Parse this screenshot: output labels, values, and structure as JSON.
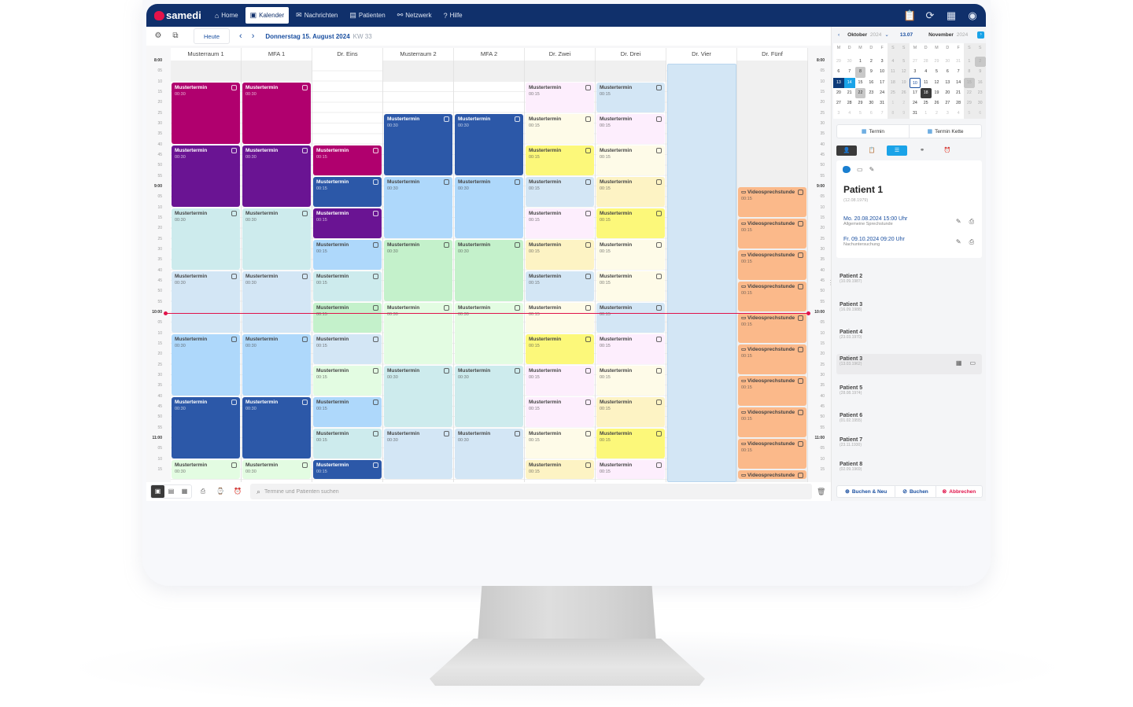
{
  "app": {
    "logo_text": "samedi",
    "nav": [
      {
        "label": "Home",
        "icon": "⌂",
        "icon_name": "home-icon",
        "active": false
      },
      {
        "label": "Kalender",
        "icon": "▣",
        "icon_name": "calendar-icon",
        "active": true
      },
      {
        "label": "Nachrichten",
        "icon": "✉",
        "icon_name": "mail-icon",
        "active": false
      },
      {
        "label": "Patienten",
        "icon": "▤",
        "icon_name": "patients-icon",
        "active": false
      },
      {
        "label": "Netzwerk",
        "icon": "⚯",
        "icon_name": "network-icon",
        "active": false
      },
      {
        "label": "Hilfe",
        "icon": "?",
        "icon_name": "help-icon",
        "active": false
      }
    ],
    "nav_right_icons": [
      {
        "name": "clipboard-edit-icon",
        "glyph": "📋"
      },
      {
        "name": "sync-icon",
        "glyph": "⟳"
      },
      {
        "name": "calendar-add-icon",
        "glyph": "▦"
      },
      {
        "name": "user-account-icon",
        "glyph": "◉"
      }
    ]
  },
  "toolbar": {
    "today_label": "Heute",
    "prev": "‹",
    "next": "›",
    "date": "Donnerstag 15. August 2024",
    "week": "KW 33"
  },
  "calendar": {
    "columns": [
      "Musterraum 1",
      "MFA 1",
      "Dr. Eins",
      "Musterraum 2",
      "MFA 2",
      "Dr. Zwei",
      "Dr. Drei",
      "Dr. Vier",
      "Dr. Fünf"
    ],
    "time_labels_left": [
      "8:00",
      "05",
      "10",
      "15",
      "20",
      "25",
      "30",
      "35",
      "40",
      "45",
      "50",
      "55",
      "9:00",
      "05",
      "10",
      "15",
      "20",
      "25",
      "30",
      "35",
      "40",
      "45",
      "50",
      "55",
      "10:00",
      "05",
      "10",
      "15",
      "20",
      "25",
      "30",
      "35",
      "40",
      "45",
      "50",
      "55",
      "11:00",
      "05",
      "10",
      "15"
    ],
    "time_labels_right": [
      "8:00",
      "05",
      "10",
      "15",
      "20",
      "25",
      "30",
      "35",
      "40",
      "45",
      "50",
      "55",
      "9:00",
      "05",
      "10",
      "15",
      "20",
      "25",
      "30",
      "35",
      "40",
      "45",
      "50",
      "55",
      "10:00",
      "05",
      "10",
      "15",
      "20",
      "25",
      "30",
      "35",
      "40",
      "45",
      "50",
      "55",
      "11:00",
      "05",
      "10",
      "15"
    ],
    "current_time": "10:00",
    "appointments": [
      {
        "col": 0,
        "start": 2,
        "len": 6,
        "title": "Mustertermin",
        "dur": "00:30",
        "bg": "#b0006e",
        "fg": "#ffffff"
      },
      {
        "col": 0,
        "start": 8,
        "len": 6,
        "title": "Mustertermin",
        "dur": "00:30",
        "bg": "#6a1493",
        "fg": "#ffffff"
      },
      {
        "col": 0,
        "start": 14,
        "len": 6,
        "title": "Mustertermin",
        "dur": "00:30",
        "bg": "#cdebed",
        "fg": "#444444"
      },
      {
        "col": 0,
        "start": 20,
        "len": 6,
        "title": "Mustertermin",
        "dur": "00:30",
        "bg": "#d3e6f5",
        "fg": "#444444"
      },
      {
        "col": 0,
        "start": 26,
        "len": 6,
        "title": "Mustertermin",
        "dur": "00:30",
        "bg": "#aed8fb",
        "fg": "#444444"
      },
      {
        "col": 0,
        "start": 32,
        "len": 6,
        "title": "Mustertermin",
        "dur": "00:30",
        "bg": "#2c58a8",
        "fg": "#ffffff"
      },
      {
        "col": 0,
        "start": 38,
        "len": 2,
        "title": "Mustertermin",
        "dur": "00:30",
        "bg": "#e3fce2",
        "fg": "#444444"
      },
      {
        "col": 1,
        "start": 2,
        "len": 6,
        "title": "Mustertermin",
        "dur": "00:30",
        "bg": "#b0006e",
        "fg": "#ffffff"
      },
      {
        "col": 1,
        "start": 8,
        "len": 6,
        "title": "Mustertermin",
        "dur": "00:30",
        "bg": "#6a1493",
        "fg": "#ffffff"
      },
      {
        "col": 1,
        "start": 14,
        "len": 6,
        "title": "Mustertermin",
        "dur": "00:30",
        "bg": "#cdebed",
        "fg": "#444444"
      },
      {
        "col": 1,
        "start": 20,
        "len": 6,
        "title": "Mustertermin",
        "dur": "00:30",
        "bg": "#d3e6f5",
        "fg": "#444444"
      },
      {
        "col": 1,
        "start": 26,
        "len": 6,
        "title": "Mustertermin",
        "dur": "00:30",
        "bg": "#aed8fb",
        "fg": "#444444"
      },
      {
        "col": 1,
        "start": 32,
        "len": 6,
        "title": "Mustertermin",
        "dur": "00:30",
        "bg": "#2c58a8",
        "fg": "#ffffff"
      },
      {
        "col": 1,
        "start": 38,
        "len": 2,
        "title": "Mustertermin",
        "dur": "00:30",
        "bg": "#e3fce2",
        "fg": "#444444"
      },
      {
        "col": 2,
        "start": 8,
        "len": 3,
        "title": "Mustertermin",
        "dur": "00:15",
        "bg": "#b0006e",
        "fg": "#ffffff"
      },
      {
        "col": 2,
        "start": 11,
        "len": 3,
        "title": "Mustertermin",
        "dur": "00:15",
        "bg": "#2c58a8",
        "fg": "#ffffff"
      },
      {
        "col": 2,
        "start": 14,
        "len": 3,
        "title": "Mustertermin",
        "dur": "00:15",
        "bg": "#6a1493",
        "fg": "#ffffff"
      },
      {
        "col": 2,
        "start": 17,
        "len": 3,
        "title": "Mustertermin",
        "dur": "00:15",
        "bg": "#aed8fb",
        "fg": "#444444"
      },
      {
        "col": 2,
        "start": 20,
        "len": 3,
        "title": "Mustertermin",
        "dur": "00:15",
        "bg": "#cdebed",
        "fg": "#444444"
      },
      {
        "col": 2,
        "start": 23,
        "len": 3,
        "title": "Mustertermin",
        "dur": "00:15",
        "bg": "#c4f1cb",
        "fg": "#444444"
      },
      {
        "col": 2,
        "start": 26,
        "len": 3,
        "title": "Mustertermin",
        "dur": "00:15",
        "bg": "#d3e6f5",
        "fg": "#444444"
      },
      {
        "col": 2,
        "start": 29,
        "len": 3,
        "title": "Mustertermin",
        "dur": "00:15",
        "bg": "#e3fce2",
        "fg": "#444444"
      },
      {
        "col": 2,
        "start": 32,
        "len": 3,
        "title": "Mustertermin",
        "dur": "00:15",
        "bg": "#aed8fb",
        "fg": "#444444"
      },
      {
        "col": 2,
        "start": 35,
        "len": 3,
        "title": "Mustertermin",
        "dur": "00:15",
        "bg": "#cdebed",
        "fg": "#444444"
      },
      {
        "col": 2,
        "start": 38,
        "len": 2,
        "title": "Mustertermin",
        "dur": "00:15",
        "bg": "#2c58a8",
        "fg": "#ffffff"
      },
      {
        "col": 3,
        "start": 5,
        "len": 6,
        "title": "Mustertermin",
        "dur": "00:30",
        "bg": "#2c58a8",
        "fg": "#ffffff"
      },
      {
        "col": 3,
        "start": 11,
        "len": 6,
        "title": "Mustertermin",
        "dur": "00:30",
        "bg": "#aed8fb",
        "fg": "#444444"
      },
      {
        "col": 3,
        "start": 17,
        "len": 6,
        "title": "Mustertermin",
        "dur": "00:30",
        "bg": "#c4f1cb",
        "fg": "#444444"
      },
      {
        "col": 3,
        "start": 23,
        "len": 6,
        "title": "Mustertermin",
        "dur": "00:30",
        "bg": "#e3fce2",
        "fg": "#444444"
      },
      {
        "col": 3,
        "start": 29,
        "len": 6,
        "title": "Mustertermin",
        "dur": "00:30",
        "bg": "#cdebed",
        "fg": "#444444"
      },
      {
        "col": 3,
        "start": 35,
        "len": 5,
        "title": "Mustertermin",
        "dur": "00:30",
        "bg": "#d3e6f5",
        "fg": "#444444"
      },
      {
        "col": 4,
        "start": 5,
        "len": 6,
        "title": "Mustertermin",
        "dur": "00:30",
        "bg": "#2c58a8",
        "fg": "#ffffff"
      },
      {
        "col": 4,
        "start": 11,
        "len": 6,
        "title": "Mustertermin",
        "dur": "00:30",
        "bg": "#aed8fb",
        "fg": "#444444"
      },
      {
        "col": 4,
        "start": 17,
        "len": 6,
        "title": "Mustertermin",
        "dur": "00:30",
        "bg": "#c4f1cb",
        "fg": "#444444"
      },
      {
        "col": 4,
        "start": 23,
        "len": 6,
        "title": "Mustertermin",
        "dur": "00:30",
        "bg": "#e3fce2",
        "fg": "#444444"
      },
      {
        "col": 4,
        "start": 29,
        "len": 6,
        "title": "Mustertermin",
        "dur": "00:30",
        "bg": "#cdebed",
        "fg": "#444444"
      },
      {
        "col": 4,
        "start": 35,
        "len": 5,
        "title": "Mustertermin",
        "dur": "00:30",
        "bg": "#d3e6f5",
        "fg": "#444444"
      },
      {
        "col": 5,
        "start": 2,
        "len": 3,
        "title": "Mustertermin",
        "dur": "00:15",
        "bg": "#fdeefd",
        "fg": "#444444"
      },
      {
        "col": 5,
        "start": 5,
        "len": 3,
        "title": "Mustertermin",
        "dur": "00:15",
        "bg": "#fefbe8",
        "fg": "#444444"
      },
      {
        "col": 5,
        "start": 8,
        "len": 3,
        "title": "Mustertermin",
        "dur": "00:15",
        "bg": "#fcf87a",
        "fg": "#444444"
      },
      {
        "col": 5,
        "start": 11,
        "len": 3,
        "title": "Mustertermin",
        "dur": "00:15",
        "bg": "#d3e6f5",
        "fg": "#444444"
      },
      {
        "col": 5,
        "start": 14,
        "len": 3,
        "title": "Mustertermin",
        "dur": "00:15",
        "bg": "#fdeefd",
        "fg": "#444444"
      },
      {
        "col": 5,
        "start": 17,
        "len": 3,
        "title": "Mustertermin",
        "dur": "00:15",
        "bg": "#fdf3c4",
        "fg": "#444444"
      },
      {
        "col": 5,
        "start": 20,
        "len": 3,
        "title": "Mustertermin",
        "dur": "00:15",
        "bg": "#d3e6f5",
        "fg": "#444444"
      },
      {
        "col": 5,
        "start": 23,
        "len": 3,
        "title": "Mustertermin",
        "dur": "00:15",
        "bg": "#fefbe8",
        "fg": "#444444"
      },
      {
        "col": 5,
        "start": 26,
        "len": 3,
        "title": "Mustertermin",
        "dur": "00:15",
        "bg": "#fcf87a",
        "fg": "#444444"
      },
      {
        "col": 5,
        "start": 29,
        "len": 3,
        "title": "Mustertermin",
        "dur": "00:15",
        "bg": "#fdeefd",
        "fg": "#444444"
      },
      {
        "col": 5,
        "start": 32,
        "len": 3,
        "title": "Mustertermin",
        "dur": "00:15",
        "bg": "#fdeefd",
        "fg": "#444444"
      },
      {
        "col": 5,
        "start": 35,
        "len": 3,
        "title": "Mustertermin",
        "dur": "00:15",
        "bg": "#fefbe8",
        "fg": "#444444"
      },
      {
        "col": 5,
        "start": 38,
        "len": 2,
        "title": "Mustertermin",
        "dur": "00:15",
        "bg": "#fdf3c4",
        "fg": "#444444"
      },
      {
        "col": 6,
        "start": 2,
        "len": 3,
        "title": "Mustertermin",
        "dur": "00:15",
        "bg": "#d3e6f5",
        "fg": "#444444"
      },
      {
        "col": 6,
        "start": 5,
        "len": 3,
        "title": "Mustertermin",
        "dur": "00:15",
        "bg": "#fdeefd",
        "fg": "#444444"
      },
      {
        "col": 6,
        "start": 8,
        "len": 3,
        "title": "Mustertermin",
        "dur": "00:15",
        "bg": "#fefbe8",
        "fg": "#444444"
      },
      {
        "col": 6,
        "start": 11,
        "len": 3,
        "title": "Mustertermin",
        "dur": "00:15",
        "bg": "#fdf3c4",
        "fg": "#444444"
      },
      {
        "col": 6,
        "start": 14,
        "len": 3,
        "title": "Mustertermin",
        "dur": "00:15",
        "bg": "#fcf87a",
        "fg": "#444444"
      },
      {
        "col": 6,
        "start": 17,
        "len": 3,
        "title": "Mustertermin",
        "dur": "00:15",
        "bg": "#fefbe8",
        "fg": "#444444"
      },
      {
        "col": 6,
        "start": 20,
        "len": 3,
        "title": "Mustertermin",
        "dur": "00:15",
        "bg": "#fefbe8",
        "fg": "#444444"
      },
      {
        "col": 6,
        "start": 23,
        "len": 3,
        "title": "Mustertermin",
        "dur": "00:15",
        "bg": "#d3e6f5",
        "fg": "#444444"
      },
      {
        "col": 6,
        "start": 26,
        "len": 3,
        "title": "Mustertermin",
        "dur": "00:15",
        "bg": "#fdeefd",
        "fg": "#444444"
      },
      {
        "col": 6,
        "start": 29,
        "len": 3,
        "title": "Mustertermin",
        "dur": "00:15",
        "bg": "#fefbe8",
        "fg": "#444444"
      },
      {
        "col": 6,
        "start": 32,
        "len": 3,
        "title": "Mustertermin",
        "dur": "00:15",
        "bg": "#fdf3c4",
        "fg": "#444444"
      },
      {
        "col": 6,
        "start": 35,
        "len": 3,
        "title": "Mustertermin",
        "dur": "00:15",
        "bg": "#fcf87a",
        "fg": "#444444"
      },
      {
        "col": 6,
        "start": 38,
        "len": 2,
        "title": "Mustertermin",
        "dur": "00:15",
        "bg": "#fdeefd",
        "fg": "#444444"
      },
      {
        "col": 8,
        "start": 12,
        "len": 3,
        "title": "Videosprechstunde",
        "dur": "00:15",
        "bg": "#fbb98a",
        "fg": "#444444",
        "video": true
      },
      {
        "col": 8,
        "start": 15,
        "len": 3,
        "title": "Videosprechstunde",
        "dur": "00:15",
        "bg": "#fbb98a",
        "fg": "#444444",
        "video": true
      },
      {
        "col": 8,
        "start": 18,
        "len": 3,
        "title": "Videosprechstunde",
        "dur": "00:15",
        "bg": "#fbb98a",
        "fg": "#444444",
        "video": true
      },
      {
        "col": 8,
        "start": 21,
        "len": 3,
        "title": "Videosprechstunde",
        "dur": "00:15",
        "bg": "#fbb98a",
        "fg": "#444444",
        "video": true
      },
      {
        "col": 8,
        "start": 24,
        "len": 3,
        "title": "Videosprechstunde",
        "dur": "00:15",
        "bg": "#fbb98a",
        "fg": "#444444",
        "video": true
      },
      {
        "col": 8,
        "start": 27,
        "len": 3,
        "title": "Videosprechstunde",
        "dur": "00:15",
        "bg": "#fbb98a",
        "fg": "#444444",
        "video": true
      },
      {
        "col": 8,
        "start": 30,
        "len": 3,
        "title": "Videosprechstunde",
        "dur": "00:15",
        "bg": "#fbb98a",
        "fg": "#444444",
        "video": true
      },
      {
        "col": 8,
        "start": 33,
        "len": 3,
        "title": "Videosprechstunde",
        "dur": "00:15",
        "bg": "#fbb98a",
        "fg": "#444444",
        "video": true
      },
      {
        "col": 8,
        "start": 36,
        "len": 3,
        "title": "Videosprechstunde",
        "dur": "00:15",
        "bg": "#fbb98a",
        "fg": "#444444",
        "video": true
      },
      {
        "col": 8,
        "start": 39,
        "len": 1,
        "title": "Videosprechstunde",
        "dur": "00:15",
        "bg": "#fbb98a",
        "fg": "#444444",
        "video": true
      }
    ]
  },
  "bottombar": {
    "view_buttons": [
      "day-view",
      "week-view",
      "month-view"
    ],
    "search_placeholder": "Termine und Patienten suchen"
  },
  "minicalendar": {
    "prev": "‹",
    "month1": "Oktober",
    "year1": "2024",
    "week_label": "13.07",
    "month2": "November",
    "year2": "2024",
    "next": "›",
    "weekdays": [
      "M",
      "D",
      "M",
      "D",
      "F",
      "S",
      "S"
    ],
    "month1_weeks": [
      [
        "29",
        "30",
        "1",
        "2",
        "3",
        "4",
        "5"
      ],
      [
        "6",
        "7",
        "8",
        "9",
        "10",
        "11",
        "12"
      ],
      [
        "13",
        "14",
        "15",
        "16",
        "17",
        "18",
        "19"
      ],
      [
        "20",
        "21",
        "22",
        "23",
        "24",
        "25",
        "26"
      ],
      [
        "27",
        "28",
        "29",
        "30",
        "31",
        "1",
        "2"
      ],
      [
        "3",
        "4",
        "5",
        "6",
        "7",
        "8",
        "9"
      ]
    ],
    "month2_weeks": [
      [
        "27",
        "28",
        "29",
        "30",
        "31",
        "1",
        "2"
      ],
      [
        "3",
        "4",
        "5",
        "6",
        "7",
        "8",
        "9"
      ],
      [
        "10",
        "11",
        "12",
        "13",
        "14",
        "15",
        "16"
      ],
      [
        "17",
        "18",
        "19",
        "20",
        "21",
        "22",
        "23"
      ],
      [
        "24",
        "25",
        "26",
        "27",
        "28",
        "29",
        "30"
      ],
      [
        "31",
        "1",
        "2",
        "3",
        "4",
        "5",
        "6"
      ]
    ]
  },
  "panel": {
    "book_termin": "Termin",
    "book_chain": "Termin Kette",
    "patient": {
      "name": "Patient 1",
      "dob": "(12.08.1979)",
      "appointments": [
        {
          "datetime": "Mo. 20.08.2024 15:00 Uhr",
          "type": "Allgemeine Sprechstunde"
        },
        {
          "datetime": "Fr. 09.10.2024 09:20 Uhr",
          "type": "Nachuntersuchung"
        }
      ]
    },
    "patient_list": [
      {
        "name": "Patient 2",
        "dob": "(10.09.1987)"
      },
      {
        "name": "Patient 3",
        "dob": "(16.09.1988)"
      },
      {
        "name": "Patient 4",
        "dob": "(23.03.1970)"
      },
      {
        "name": "Patient 3",
        "dob": "(13.03.1962)",
        "highlighted": true
      },
      {
        "name": "Patient 5",
        "dob": "(28.08.1974)"
      },
      {
        "name": "Patient 6",
        "dob": "(01.02.1955)"
      },
      {
        "name": "Patient 7",
        "dob": "(23.11.1930)"
      },
      {
        "name": "Patient 8",
        "dob": "(02.09.1969)"
      }
    ],
    "actions": {
      "book_new": "Buchen & Neu",
      "book": "Buchen",
      "cancel": "Abbrechen"
    }
  },
  "colors": {
    "nav_bg": "#10306b",
    "brand_red": "#e5134a",
    "accent_blue": "#1a4fa0",
    "light_blue": "#1aa3e8",
    "now_line": "#e0134a"
  }
}
